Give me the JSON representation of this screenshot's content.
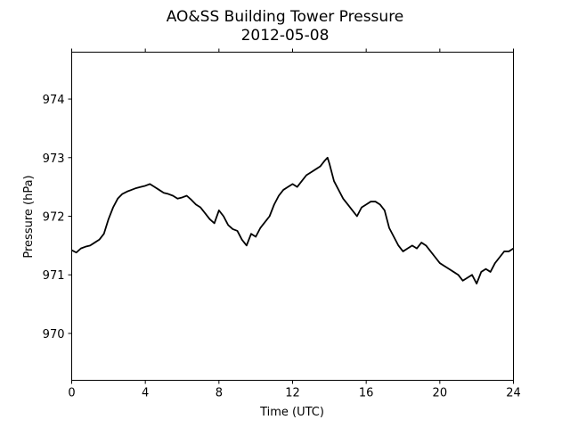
{
  "chart_data": {
    "type": "line",
    "title": "AO&SS Building Tower Pressure",
    "subtitle": "2012-05-08",
    "xlabel": "Time (UTC)",
    "ylabel": "Pressure (hPa)",
    "xlim": [
      0,
      24
    ],
    "ylim": [
      969.2,
      974.8
    ],
    "xticks": [
      0,
      4,
      8,
      12,
      16,
      20,
      24
    ],
    "xtick_labels": [
      "0",
      "4",
      "8",
      "12",
      "16",
      "20",
      "24"
    ],
    "yticks": [
      970,
      971,
      972,
      973,
      974
    ],
    "ytick_labels": [
      "970",
      "971",
      "972",
      "973",
      "974"
    ],
    "grid": false,
    "legend": "none",
    "line_color": "#000000",
    "series": [
      {
        "x": [
          0,
          0.25,
          0.5,
          0.75,
          1.0,
          1.25,
          1.5,
          1.75,
          2.0,
          2.25,
          2.5,
          2.75,
          3.0,
          3.25,
          3.5,
          3.75,
          4.0,
          4.25,
          4.5,
          4.75,
          5.0,
          5.25,
          5.5,
          5.75,
          6.0,
          6.25,
          6.5,
          6.75,
          7.0,
          7.25,
          7.5,
          7.75,
          8.0,
          8.25,
          8.5,
          8.75,
          9.0,
          9.25,
          9.5,
          9.75,
          10.0,
          10.25,
          10.5,
          10.75,
          11.0,
          11.25,
          11.5,
          11.75,
          12.0,
          12.25,
          12.5,
          12.75,
          13.0,
          13.25,
          13.5,
          13.75,
          13.9,
          14.0,
          14.25,
          14.5,
          14.75,
          15.0,
          15.25,
          15.5,
          15.75,
          16.0,
          16.25,
          16.5,
          16.75,
          17.0,
          17.25,
          17.5,
          17.75,
          18.0,
          18.25,
          18.5,
          18.75,
          19.0,
          19.25,
          19.5,
          19.75,
          20.0,
          20.25,
          20.5,
          20.75,
          21.0,
          21.25,
          21.5,
          21.75,
          22.0,
          22.25,
          22.5,
          22.75,
          23.0,
          23.25,
          23.5,
          23.75,
          24.0
        ],
        "values": [
          971.42,
          971.38,
          971.45,
          971.48,
          971.5,
          971.55,
          971.6,
          971.7,
          971.95,
          972.15,
          972.3,
          972.38,
          972.42,
          972.45,
          972.48,
          972.5,
          972.52,
          972.55,
          972.5,
          972.45,
          972.4,
          972.38,
          972.35,
          972.3,
          972.32,
          972.35,
          972.28,
          972.2,
          972.15,
          972.05,
          971.95,
          971.88,
          972.1,
          972.0,
          971.85,
          971.78,
          971.75,
          971.6,
          971.5,
          971.7,
          971.65,
          971.8,
          971.9,
          972.0,
          972.2,
          972.35,
          972.45,
          972.5,
          972.55,
          972.5,
          972.6,
          972.7,
          972.75,
          972.8,
          972.85,
          972.95,
          973.0,
          972.9,
          972.6,
          972.45,
          972.3,
          972.2,
          972.1,
          972.0,
          972.15,
          972.2,
          972.25,
          972.25,
          972.2,
          972.1,
          971.8,
          971.65,
          971.5,
          971.4,
          971.45,
          971.5,
          971.45,
          971.55,
          971.5,
          971.4,
          971.3,
          971.2,
          971.15,
          971.1,
          971.05,
          971.0,
          970.9,
          970.95,
          971.0,
          970.85,
          971.05,
          971.1,
          971.05,
          971.2,
          971.3,
          971.4,
          971.4,
          971.45
        ]
      }
    ]
  }
}
